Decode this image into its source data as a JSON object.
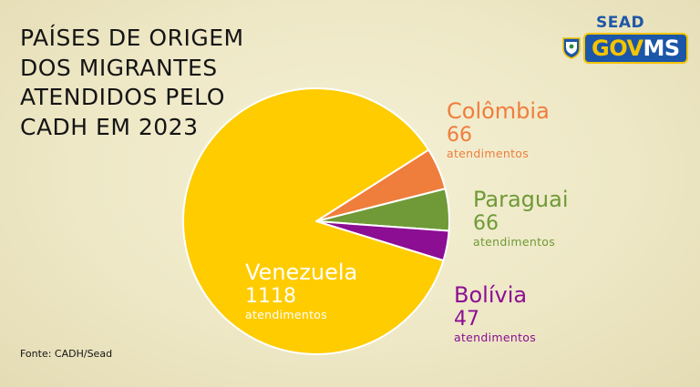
{
  "title_lines": [
    "PAÍSES DE ORIGEM",
    "DOS MIGRANTES",
    "ATENDIDOS PELO",
    "CADH EM 2023"
  ],
  "logo": {
    "top": "SEAD",
    "gov": "GOV",
    "ms": "MS"
  },
  "source": "Fonte: CADH/Sead",
  "chart_data": {
    "type": "pie",
    "title": "PAÍSES DE ORIGEM DOS MIGRANTES ATENDIDOS PELO CADH EM 2023",
    "unit": "atendimentos",
    "slices": [
      {
        "label": "Colômbia",
        "value": 66,
        "display": "66",
        "color": "#ef7d3c"
      },
      {
        "label": "Paraguai",
        "value": 66,
        "display": "66",
        "color": "#6f9a37"
      },
      {
        "label": "Bolívia",
        "value": 47,
        "display": "47",
        "color": "#8c0e93"
      },
      {
        "label": "Venezuela",
        "value": 1118,
        "display": "1118",
        "color": "#ffcc00"
      }
    ],
    "label_colors": [
      "#ef7d3c",
      "#6f9a37",
      "#8c0e93",
      "#ffffff"
    ]
  }
}
